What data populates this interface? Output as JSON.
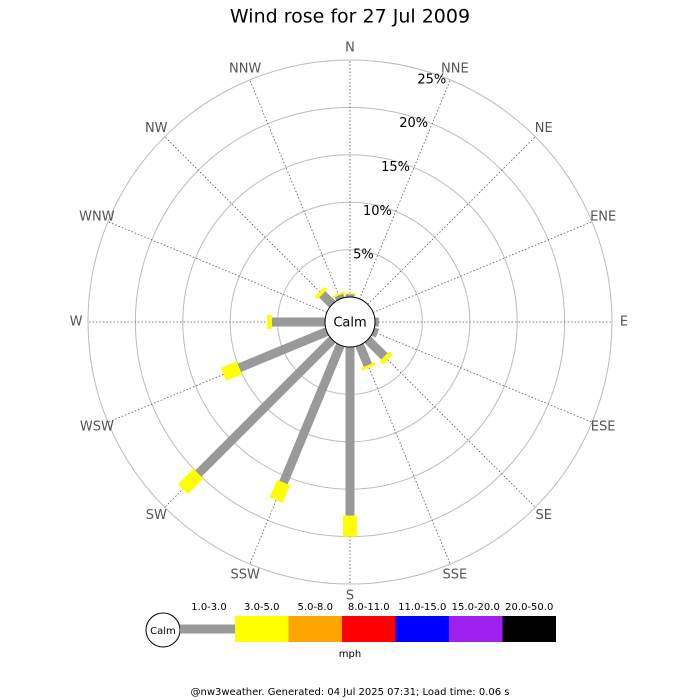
{
  "chart_data": {
    "type": "windrose",
    "title": "Wind rose for 27 Jul 2009",
    "directions": [
      "N",
      "NNE",
      "NE",
      "ENE",
      "E",
      "ESE",
      "SE",
      "SSE",
      "S",
      "SSW",
      "SW",
      "WSW",
      "W",
      "WNW",
      "NW",
      "NNW"
    ],
    "center_label": "Calm",
    "rlim": [
      0,
      25
    ],
    "rticks": [
      {
        "value": 5,
        "label": "5%"
      },
      {
        "value": 10,
        "label": "10%"
      },
      {
        "value": 15,
        "label": "15%"
      },
      {
        "value": 20,
        "label": "20%"
      },
      {
        "value": 25,
        "label": "25%"
      }
    ],
    "series": [
      {
        "name": "1.0-3.0",
        "color": "#999999",
        "values": [
          0.3,
          0,
          0,
          0,
          0.4,
          0.5,
          2.5,
          2.3,
          17.8,
          15.7,
          20.0,
          10.0,
          5.6,
          0,
          1.5,
          0.4
        ]
      },
      {
        "name": "3.0-5.0",
        "color": "#ffff00",
        "values": [
          0.1,
          0,
          0,
          0,
          0,
          0,
          0.5,
          0.3,
          2.2,
          2.0,
          2.3,
          1.8,
          0.5,
          0,
          0.4,
          0.2
        ]
      },
      {
        "name": "5.0-8.0",
        "color": "#ffa500",
        "values": [
          0,
          0,
          0,
          0,
          0,
          0,
          0,
          0,
          0,
          0,
          0,
          0,
          0,
          0,
          0,
          0
        ]
      },
      {
        "name": "8.0-11.0",
        "color": "#ff0000",
        "values": [
          0,
          0,
          0,
          0,
          0,
          0,
          0,
          0,
          0,
          0,
          0,
          0,
          0,
          0,
          0,
          0
        ]
      },
      {
        "name": "11.0-15.0",
        "color": "#0000ff",
        "values": [
          0,
          0,
          0,
          0,
          0,
          0,
          0,
          0,
          0,
          0,
          0,
          0,
          0,
          0,
          0,
          0
        ]
      },
      {
        "name": "15.0-20.0",
        "color": "#a020f0",
        "values": [
          0,
          0,
          0,
          0,
          0,
          0,
          0,
          0,
          0,
          0,
          0,
          0,
          0,
          0,
          0,
          0
        ]
      },
      {
        "name": "20.0-50.0",
        "color": "#000000",
        "values": [
          0,
          0,
          0,
          0,
          0,
          0,
          0,
          0,
          0,
          0,
          0,
          0,
          0,
          0,
          0,
          0
        ]
      }
    ],
    "unit_label": "mph",
    "footer": "@nw3weather. Generated: 04 Jul 2025 07:31; Load time: 0.06 s"
  }
}
